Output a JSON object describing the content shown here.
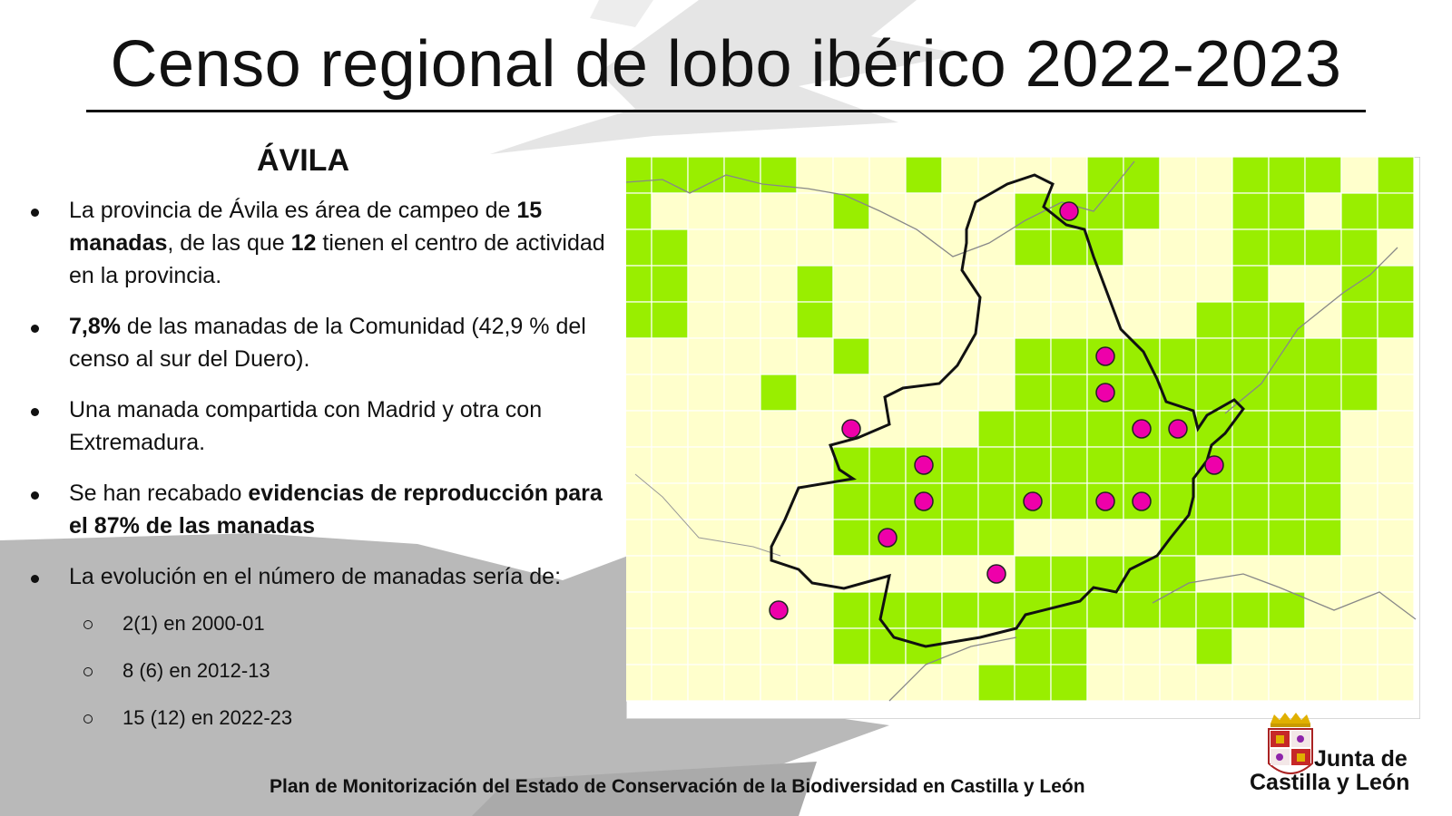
{
  "title": "Censo regional de lobo ibérico 2022-2023",
  "province": "ÁVILA",
  "bullets": [
    {
      "parts": [
        {
          "t": "La provincia de Ávila es área de campeo de ",
          "b": false
        },
        {
          "t": "15 manadas",
          "b": true
        },
        {
          "t": ", de las que ",
          "b": false
        },
        {
          "t": "12",
          "b": true
        },
        {
          "t": " tienen el centro de actividad en la provincia.",
          "b": false
        }
      ]
    },
    {
      "parts": [
        {
          "t": "7,8%",
          "b": true
        },
        {
          "t": " de las manadas de la Comunidad (42,9 % del censo al sur del Duero).",
          "b": false
        }
      ]
    },
    {
      "parts": [
        {
          "t": "Una manada compartida con Madrid y otra con Extremadura.",
          "b": false
        }
      ]
    },
    {
      "parts": [
        {
          "t": "Se han recabado ",
          "b": false
        },
        {
          "t": "evidencias de reproducción para el 87% de las manadas",
          "b": true
        }
      ]
    },
    {
      "parts": [
        {
          "t": "La evolución en el número de manadas sería de:",
          "b": false
        }
      ]
    }
  ],
  "evolution": [
    "2(1) en 2000-01",
    "8 (6) en 2012-13",
    "15 (12) en 2022-23"
  ],
  "map": {
    "colors": {
      "presence": "#99ee00",
      "absence": "#ffffcc",
      "border": "#111111",
      "pack_center": "#ee00aa"
    },
    "cols": 22,
    "rows": 15,
    "grid": [
      "ggggg...g....gg..ggg.g",
      "g.....g....gggg..gg.gg",
      "gg.........ggg...gggg.",
      "gg...g...........g..gg",
      "gg...g..........ggg.gg",
      "......g....gggggggggg.",
      "....g......gggggggggg.",
      "..........gggggggggg..",
      "......gggggggggggggg..",
      "......gggggggggggggg..",
      "......ggggg....ggggg..",
      "...........ggggg......",
      "......ggggggggggggg...",
      "......ggg..gg...g.....",
      "..........ggg........."
    ],
    "pack_centers": [
      {
        "col": 12,
        "row": 1
      },
      {
        "col": 13,
        "row": 5
      },
      {
        "col": 13,
        "row": 6
      },
      {
        "col": 6,
        "row": 7
      },
      {
        "col": 14,
        "row": 7
      },
      {
        "col": 15,
        "row": 7
      },
      {
        "col": 8,
        "row": 8
      },
      {
        "col": 16,
        "row": 8
      },
      {
        "col": 8,
        "row": 9
      },
      {
        "col": 11,
        "row": 9
      },
      {
        "col": 13,
        "row": 9
      },
      {
        "col": 14,
        "row": 9
      },
      {
        "col": 7,
        "row": 10
      },
      {
        "col": 10,
        "row": 11
      },
      {
        "col": 4,
        "row": 12
      }
    ]
  },
  "footer": "Plan de Monitorización del Estado de Conservación de la Biodiversidad en Castilla y León",
  "logo": {
    "line1": "Junta de",
    "line2": "Castilla y León"
  }
}
